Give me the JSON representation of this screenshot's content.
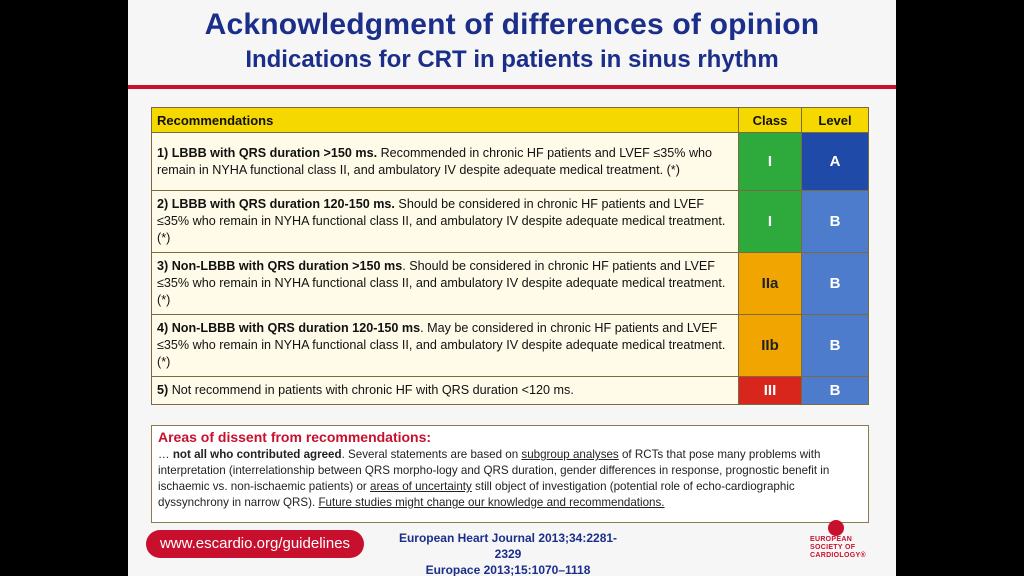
{
  "title_line1": "Acknowledgment of differences of opinion",
  "title_line2": "Indications for CRT in patients in sinus rhythm",
  "table": {
    "header": {
      "recommendations": "Recommendations",
      "class": "Class",
      "level": "Level"
    },
    "rows": [
      {
        "bold": "1) LBBB with QRS duration >150 ms.",
        "text": " Recommended in chronic HF patients and LVEF ≤35% who remain in NYHA functional class II, and ambulatory IV despite adequate medical treatment. (*)",
        "class": "I",
        "level": "A"
      },
      {
        "bold": "2) LBBB with QRS duration 120-150 ms.",
        "text": "  Should be considered  in chronic HF patients and LVEF ≤35% who remain in NYHA functional class II, and ambulatory IV despite adequate medical treatment. (*)",
        "class": "I",
        "level": "B"
      },
      {
        "bold": "3) Non-LBBB with QRS duration >150 ms",
        "text": ". Should be considered  in chronic HF patients and LVEF ≤35% who remain in NYHA functional class II, and ambulatory IV despite adequate medical treatment. (*)",
        "class": "IIa",
        "level": "B"
      },
      {
        "bold": "4) Non-LBBB with QRS duration 120-150 ms",
        "text": ". May be considered  in chronic HF patients and LVEF ≤35% who remain in NYHA functional class II, and ambulatory IV despite adequate medical treatment. (*)",
        "class": "IIb",
        "level": "B"
      },
      {
        "bold": "5)",
        "text": " Not recommend in patients with chronic HF with QRS duration <120 ms.",
        "class": "III",
        "level": "B"
      }
    ]
  },
  "dissent": {
    "title": "Areas of dissent from recommendations:",
    "p_lead": "… ",
    "p_bold": "not all who contributed agreed",
    "p1": ". Several statements are based on ",
    "u1": "subgroup analyses",
    "p2": " of RCTs that pose many problems with interpretation (interrelationship between QRS morpho-logy and QRS duration, gender differences in response,  prognostic benefit in ischaemic vs. non-ischaemic patients) or ",
    "u2": "areas of uncertainty",
    "p3": " still object of investigation (potential role of echo-cardiographic dyssynchrony in narrow QRS). ",
    "u3": "Future studies might change our knowledge and recommendations."
  },
  "footer": {
    "url": "www.escardio.org/guidelines",
    "journal1": "European Heart Journal 2013;34:2281-2329",
    "journal2": "Europace 2013;15:1070–1118",
    "logo_line1": "EUROPEAN",
    "logo_line2": "SOCIETY OF",
    "logo_line3": "CARDIOLOGY®"
  }
}
